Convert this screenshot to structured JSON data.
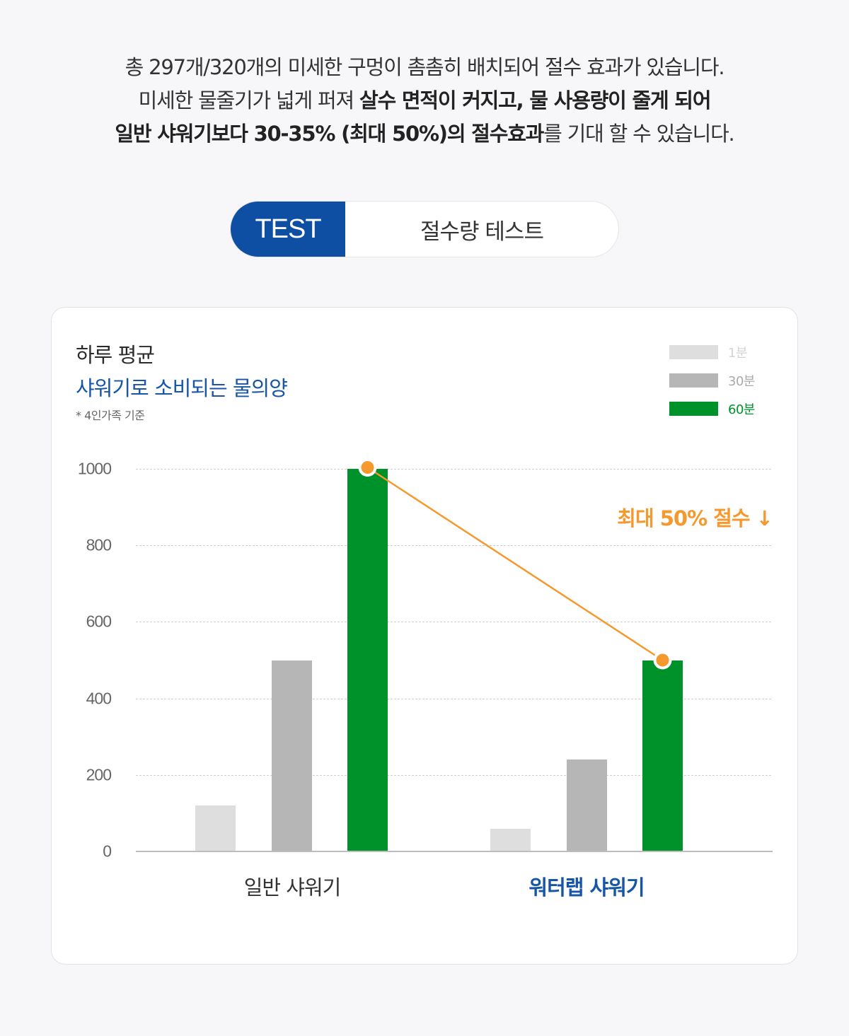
{
  "intro": {
    "line1": "총 297개/320개의 미세한 구멍이 촘촘히 배치되어 절수 효과가 있습니다.",
    "line2_normal": "미세한 물줄기가 넓게 퍼져 ",
    "line2_bold": "살수 면적이 커지고, 물 사용량이 줄게 되어",
    "line3_bold1": "일반 샤워기보다 30-35% (최대 50%)의 절수효과",
    "line3_normal": "를 기대 할 수 있습니다."
  },
  "pill": {
    "tag": "TEST",
    "title": "절수량 테스트"
  },
  "card": {
    "title_line1": "하루 평균",
    "title_line2": "샤워기로 소비되는 물의양",
    "note": "* 4인가족 기준",
    "annotation": "최대 50% 절수 ↓"
  },
  "colors": {
    "accent_blue": "#0e4ea3",
    "title_blue": "#1655a8",
    "series_1min": "#dedede",
    "series_30min": "#b6b6b6",
    "series_60min": "#00922a",
    "annotation_orange": "#f5992e"
  },
  "chart_data": {
    "type": "bar",
    "title": "하루 평균 샤워기로 소비되는 물의양",
    "subtitle": "* 4인가족 기준",
    "categories": [
      "일반 샤워기",
      "워터랩 샤워기"
    ],
    "series": [
      {
        "name": "1분",
        "values": [
          120,
          60
        ]
      },
      {
        "name": "30분",
        "values": [
          500,
          240
        ]
      },
      {
        "name": "60분",
        "values": [
          1000,
          500
        ]
      }
    ],
    "xlabel": "",
    "ylabel": "",
    "ylim": [
      0,
      1000
    ],
    "yticks": [
      0,
      200,
      400,
      600,
      800,
      1000
    ],
    "grid": true,
    "legend_position": "top-right",
    "annotations": [
      {
        "text": "최대 50% 절수 ↓",
        "type": "line",
        "from": [
          "일반 샤워기",
          "60분",
          1000
        ],
        "to": [
          "워터랩 샤워기",
          "60분",
          500
        ]
      }
    ]
  }
}
